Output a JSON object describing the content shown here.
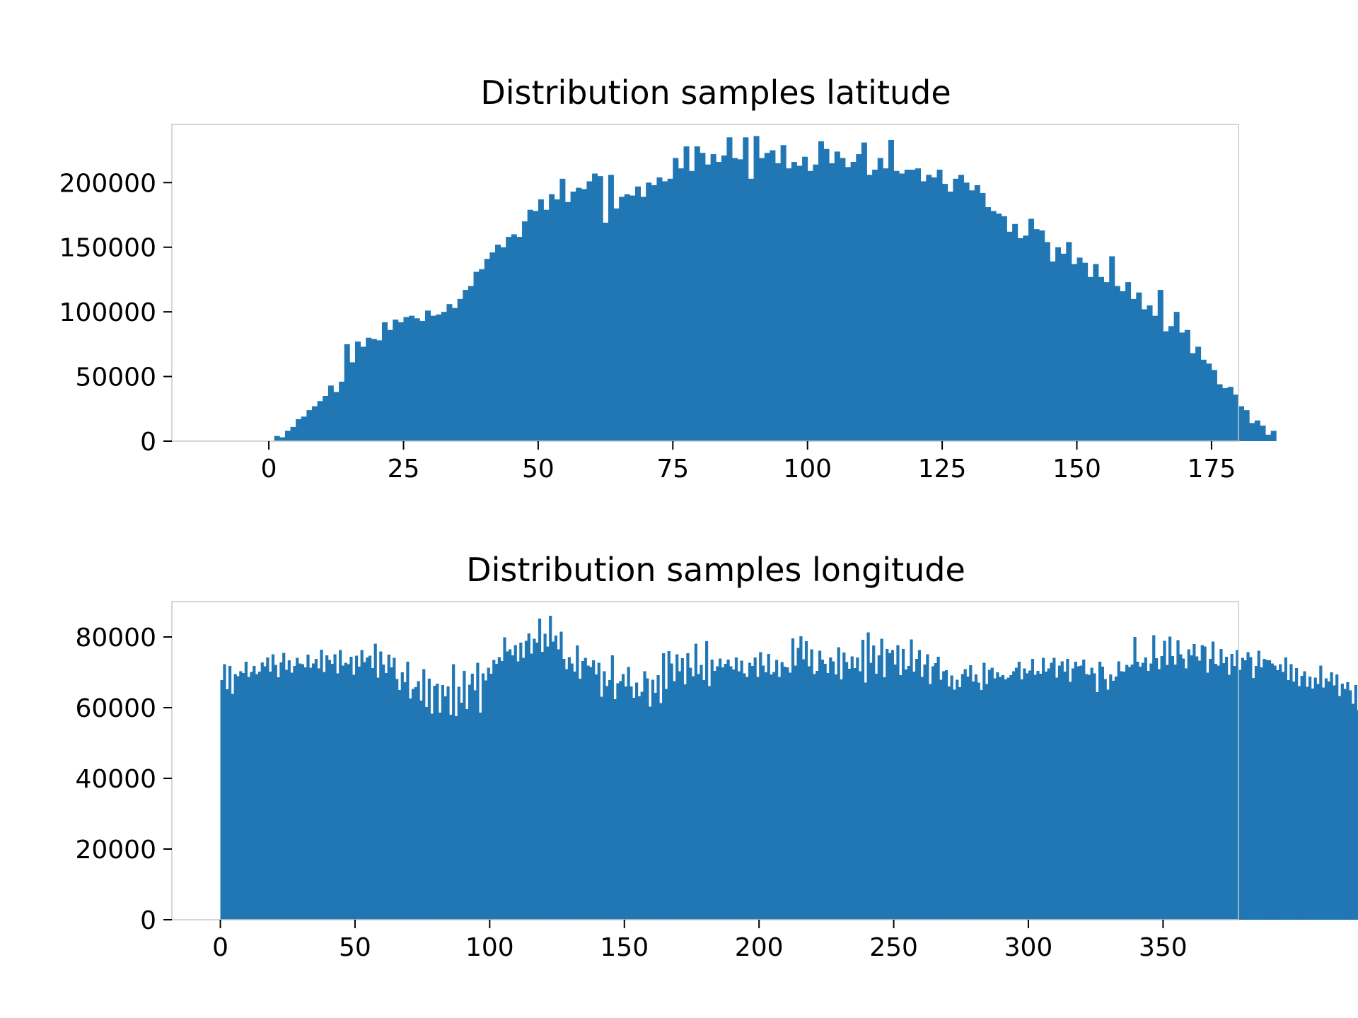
{
  "chart_data": [
    {
      "type": "bar",
      "title": "Distribution samples latitude",
      "xlabel": "",
      "ylabel": "",
      "xlim": [
        -18,
        180
      ],
      "ylim": [
        0,
        245000
      ],
      "xticks": [
        "0",
        "25",
        "50",
        "75",
        "100",
        "125",
        "150",
        "175"
      ],
      "yticks": [
        "0",
        "50000",
        "100000",
        "150000",
        "200000"
      ],
      "bin_start": 0,
      "bin_width": 1,
      "color": "#2077b4",
      "grid": false,
      "values": [
        0,
        4000,
        3000,
        8000,
        11000,
        17000,
        19000,
        24000,
        27000,
        31000,
        35000,
        43000,
        38000,
        46000,
        75000,
        61000,
        77000,
        73000,
        80000,
        79000,
        78000,
        92000,
        86000,
        94000,
        92000,
        96000,
        97000,
        95000,
        93000,
        101000,
        97000,
        98000,
        100000,
        106000,
        103000,
        110000,
        117000,
        120000,
        131000,
        133000,
        141000,
        146000,
        152000,
        150000,
        158000,
        160000,
        158000,
        170000,
        179000,
        178000,
        187000,
        179000,
        191000,
        187000,
        203000,
        185000,
        193000,
        196000,
        195000,
        201000,
        207000,
        205000,
        169000,
        206000,
        180000,
        189000,
        191000,
        190000,
        197000,
        189000,
        200000,
        198000,
        204000,
        201000,
        203000,
        219000,
        211000,
        228000,
        209000,
        228000,
        223000,
        214000,
        222000,
        216000,
        221000,
        235000,
        219000,
        218000,
        235000,
        203000,
        236000,
        219000,
        223000,
        225000,
        215000,
        229000,
        211000,
        216000,
        213000,
        220000,
        209000,
        214000,
        232000,
        226000,
        215000,
        224000,
        219000,
        212000,
        216000,
        222000,
        231000,
        206000,
        210000,
        219000,
        211000,
        233000,
        209000,
        207000,
        210000,
        210000,
        211000,
        201000,
        206000,
        204000,
        210000,
        199000,
        193000,
        203000,
        206000,
        200000,
        194000,
        198000,
        192000,
        181000,
        178000,
        176000,
        174000,
        162000,
        168000,
        157000,
        159000,
        172000,
        164000,
        163000,
        154000,
        139000,
        150000,
        145000,
        154000,
        137000,
        142000,
        138000,
        127000,
        137000,
        127000,
        123000,
        143000,
        120000,
        116000,
        123000,
        110000,
        115000,
        102000,
        105000,
        97000,
        117000,
        85000,
        89000,
        100000,
        84000,
        86000,
        68000,
        73000,
        63000,
        60000,
        55000,
        44000,
        41000,
        42000,
        36000,
        27000,
        24000,
        14000,
        16000,
        12000,
        5000,
        8000,
        0
      ]
    },
    {
      "type": "bar",
      "title": "Distribution samples longitude",
      "xlabel": "",
      "ylabel": "",
      "xlim": [
        -18,
        378
      ],
      "ylim": [
        0,
        90000
      ],
      "xticks": [
        "0",
        "50",
        "100",
        "150",
        "200",
        "250",
        "300",
        "350"
      ],
      "yticks": [
        "0",
        "20000",
        "40000",
        "60000",
        "80000"
      ],
      "bin_start": 0,
      "bin_width": 1,
      "color": "#2077b4",
      "grid": false,
      "values": [
        67800,
        72300,
        65200,
        71800,
        63900,
        69500,
        68900,
        70300,
        69800,
        73000,
        68700,
        70100,
        71800,
        69500,
        70200,
        72800,
        71700,
        74200,
        70200,
        75100,
        72100,
        68600,
        72800,
        75500,
        70700,
        73400,
        69900,
        71800,
        74100,
        72500,
        72300,
        71400,
        75000,
        71300,
        72500,
        73800,
        71100,
        76400,
        70100,
        74800,
        73500,
        72400,
        75100,
        69700,
        76300,
        71900,
        72700,
        72300,
        74400,
        69300,
        74700,
        71600,
        76300,
        72900,
        74200,
        74700,
        71200,
        78100,
        68500,
        75900,
        72200,
        69800,
        75000,
        71400,
        74100,
        68100,
        65000,
        70000,
        67200,
        73000,
        62600,
        65300,
        65800,
        67500,
        62000,
        70900,
        60200,
        68200,
        58300,
        66200,
        66800,
        58600,
        66400,
        63200,
        66000,
        58000,
        72300,
        57600,
        65900,
        61400,
        70400,
        59600,
        66500,
        69600,
        64900,
        72700,
        58600,
        69700,
        67700,
        71300,
        69600,
        73500,
        72400,
        74300,
        73200,
        79900,
        75900,
        76500,
        74800,
        77700,
        73100,
        78400,
        74100,
        78900,
        81000,
        75300,
        79500,
        78400,
        85200,
        75800,
        80900,
        77300,
        86000,
        78700,
        80400,
        76500,
        81500,
        73800,
        70900,
        74300,
        72500,
        70200,
        77600,
        68200,
        73200,
        74100,
        71900,
        71500,
        73400,
        69400,
        72700,
        63100,
        70300,
        66100,
        67800,
        74800,
        62400,
        66900,
        67500,
        69500,
        66000,
        71500,
        66000,
        62800,
        67100,
        63200,
        64500,
        70300,
        68300,
        60300,
        67900,
        64200,
        69200,
        61300,
        75400,
        65300,
        76000,
        72500,
        67500,
        75100,
        70300,
        74000,
        66600,
        75400,
        71300,
        68900,
        78100,
        69500,
        72100,
        67800,
        78800,
        66100,
        73600,
        70400,
        71700,
        73900,
        71400,
        72400,
        73600,
        71700,
        70800,
        74200,
        70300,
        73300,
        69700,
        68700,
        72700,
        71800,
        74200,
        68700,
        75700,
        71900,
        70000,
        75200,
        69400,
        70100,
        73500,
        68700,
        72900,
        71600,
        71400,
        69900,
        79600,
        71900,
        76900,
        80200,
        73700,
        78800,
        71700,
        76500,
        69500,
        70400,
        76100,
        73600,
        72400,
        69800,
        74200,
        73100,
        69400,
        77100,
        68000,
        75600,
        72900,
        71000,
        74500,
        71200,
        74200,
        70300,
        79200,
        67100,
        81300,
        72700,
        77600,
        69600,
        74800,
        79500,
        68600,
        76600,
        75400,
        76300,
        72200,
        77700,
        69200,
        76600,
        70800,
        71800,
        79300,
        70200,
        73800,
        76300,
        68700,
        72200,
        75100,
        66700,
        71700,
        72600,
        74400,
        67900,
        70300,
        70600,
        66000,
        69100,
        65100,
        67900,
        65800,
        69500,
        70900,
        68800,
        72000,
        67400,
        69400,
        67100,
        65000,
        72700,
        66700,
        70700,
        71300,
        68300,
        70000,
        68700,
        69200,
        68000,
        68500,
        69200,
        70300,
        71300,
        73000,
        68000,
        71100,
        69700,
        70500,
        73800,
        69300,
        70400,
        69600,
        74100,
        70200,
        71100,
        72700,
        74100,
        68500,
        71900,
        73100,
        70200,
        73800,
        67300,
        71100,
        73000,
        71700,
        71900,
        73600,
        69500,
        69300,
        71300,
        69700,
        64400,
        73000,
        71600,
        68100,
        65100,
        69400,
        67600,
        68800,
        73100,
        70300,
        70200,
        72100,
        71500,
        72200,
        80000,
        73000,
        71600,
        72700,
        74200,
        70400,
        72500,
        80500,
        74000,
        70900,
        74600,
        78900,
        72100,
        80100,
        74600,
        72200,
        79100,
        75100,
        73900,
        71100,
        76500,
        74800,
        78000,
        74500,
        73300,
        77700,
        77300,
        69900,
        73800,
        78700,
        72400,
        71900,
        76600,
        72600,
        74400,
        69300,
        75200,
        71800,
        76300,
        70700,
        74100,
        73400,
        75700,
        74300,
        68400,
        71800,
        76100,
        71400,
        73800,
        73500,
        73400,
        72500,
        71900,
        70600,
        72300,
        70100,
        74200,
        67800,
        72300,
        67400,
        71200,
        66100,
        69000,
        70300,
        65900,
        68800,
        65400,
        68500,
        66700,
        71900,
        65700,
        68300,
        67400,
        70000,
        66300,
        69400,
        63300,
        66800,
        65300,
        67200,
        64900,
        61100,
        66400,
        59300,
        63600,
        62900,
        64500,
        58000,
        66700,
        60000,
        62800,
        60800,
        64300,
        67000,
        62100,
        65500,
        61300,
        67400,
        62200,
        66700,
        60800,
        65600,
        65300,
        69700,
        63400,
        69400,
        65300,
        63400,
        61300,
        66600,
        67400,
        73200,
        64900,
        71200,
        69400,
        64000,
        68300,
        62900,
        68000,
        70900,
        67100,
        63300,
        69200,
        70200,
        69600,
        66400,
        66800,
        64600,
        64100,
        70300
      ]
    }
  ]
}
